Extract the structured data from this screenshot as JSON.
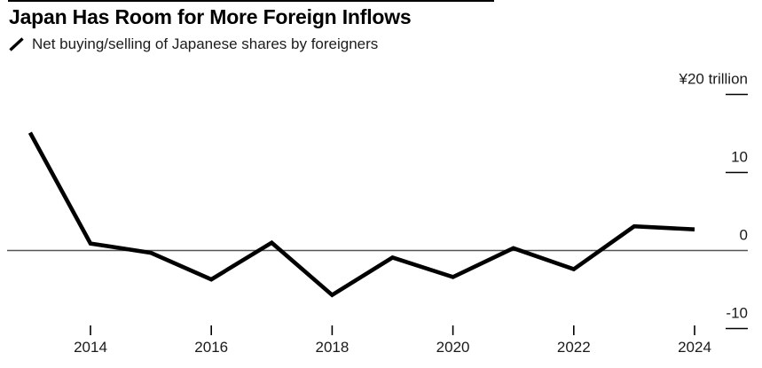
{
  "header": {
    "title": "Japan Has Room for More Foreign Inflows",
    "legend_label": "Net buying/selling of Japanese shares by foreigners"
  },
  "chart_data": {
    "type": "line",
    "title": "Japan Has Room for More Foreign Inflows",
    "series": [
      {
        "name": "Net buying/selling of Japanese shares by foreigners",
        "x": [
          2013,
          2014,
          2015,
          2016,
          2017,
          2018,
          2019,
          2020,
          2021,
          2022,
          2023,
          2024
        ],
        "values": [
          15.1,
          0.9,
          -0.3,
          -3.7,
          1.0,
          -5.7,
          -0.9,
          -3.4,
          0.3,
          -2.4,
          3.1,
          2.7
        ]
      }
    ],
    "unit": "¥ trillion",
    "y_axis": {
      "side": "right",
      "ticks": [
        20,
        10,
        0,
        -10
      ],
      "tick_labels": [
        "¥20 trillion",
        "10",
        "0",
        "-10"
      ],
      "range": [
        -12.5,
        22
      ]
    },
    "x_axis": {
      "ticks": [
        2014,
        2016,
        2018,
        2020,
        2022,
        2024
      ],
      "tick_labels": [
        "2014",
        "2016",
        "2018",
        "2020",
        "2022",
        "2024"
      ],
      "range": [
        2013,
        2025
      ]
    },
    "zero_line": true,
    "grid": "zero-line-only",
    "legend_position": "top-left",
    "colors": {
      "series": "#000000",
      "zero_line": "#545454",
      "tick": "#000000",
      "label": "#1a1a1a"
    }
  }
}
